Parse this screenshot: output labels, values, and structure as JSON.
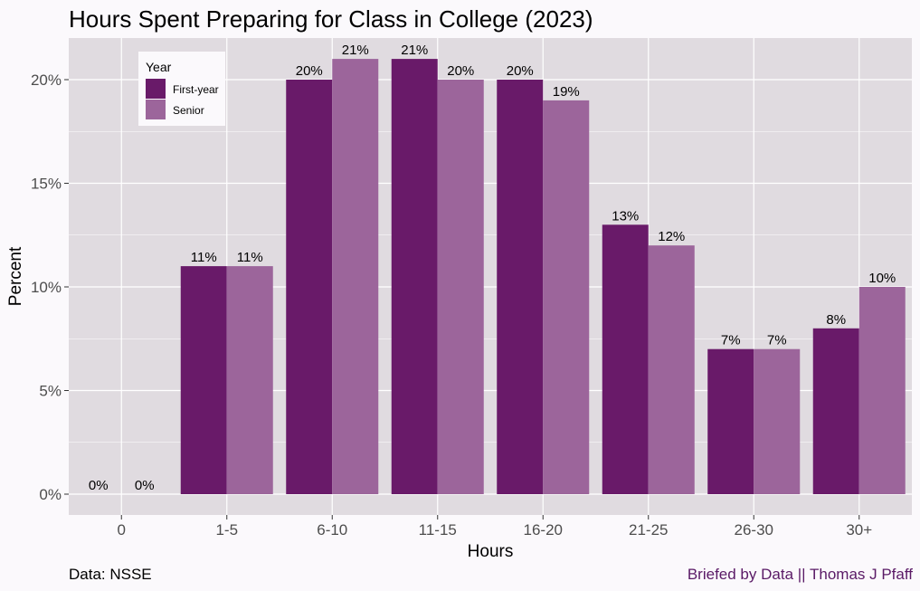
{
  "footer": {
    "source": "Data: NSSE",
    "credit": "Briefed by Data || Thomas J Pfaff"
  },
  "colors": {
    "panel": "#e0dbe0",
    "background": "#fbf9fc",
    "grid": "#ffffff",
    "credit": "#5a1a66"
  },
  "chart_data": {
    "type": "bar",
    "title": "Hours Spent Preparing for Class in College (2023)",
    "xlabel": "Hours",
    "ylabel": "Percent",
    "categories": [
      "0",
      "1-5",
      "6-10",
      "11-15",
      "16-20",
      "21-25",
      "26-30",
      "30+"
    ],
    "series": [
      {
        "name": "First-year",
        "color": "#691a69",
        "values": [
          0,
          11,
          20,
          21,
          20,
          13,
          7,
          8
        ]
      },
      {
        "name": "Senior",
        "color": "#9c659b",
        "values": [
          0,
          11,
          21,
          20,
          19,
          12,
          7,
          10
        ]
      }
    ],
    "ylim": [
      0,
      22
    ],
    "yticks": [
      0,
      5,
      10,
      15,
      20
    ],
    "ytick_labels": [
      "0%",
      "5%",
      "10%",
      "15%",
      "20%"
    ],
    "legend": {
      "title": "Year",
      "position": "top-left"
    },
    "grid": true
  }
}
